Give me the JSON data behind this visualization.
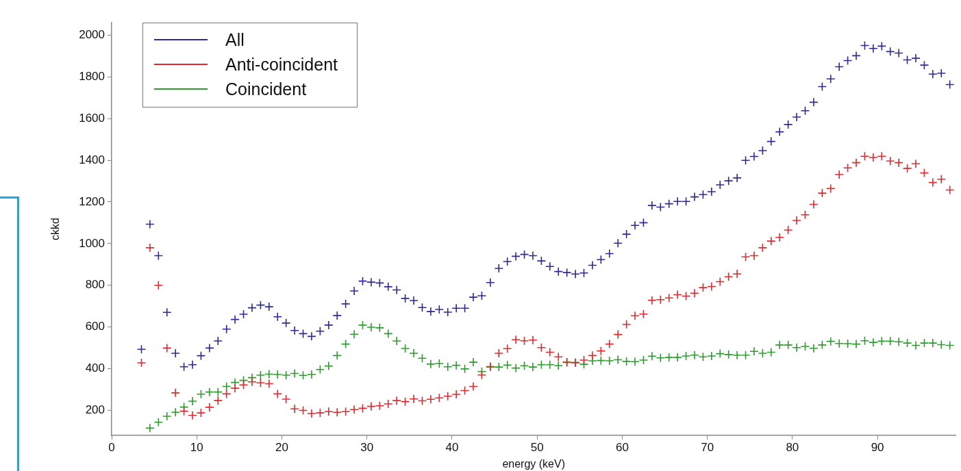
{
  "chart_data": {
    "type": "scatter",
    "xlabel": "energy (keV)",
    "ylabel": "ckkd",
    "legend": "top left",
    "grid": false,
    "marker": "cross",
    "xlim": [
      0,
      99.2
    ],
    "xticks": [
      0,
      10,
      20,
      30,
      40,
      50,
      60,
      70,
      80,
      90
    ],
    "ylim": [
      80,
      2060
    ],
    "yticks": [
      200,
      400,
      600,
      800,
      1000,
      1200,
      1400,
      1600,
      1800,
      2000
    ],
    "x": [
      3.5,
      4.5,
      5.5,
      6.5,
      7.5,
      8.5,
      9.5,
      10.5,
      11.5,
      12.5,
      13.5,
      14.5,
      15.5,
      16.5,
      17.5,
      18.5,
      19.5,
      20.5,
      21.5,
      22.5,
      23.5,
      24.5,
      25.5,
      26.5,
      27.5,
      28.5,
      29.5,
      30.5,
      31.5,
      32.5,
      33.5,
      34.5,
      35.5,
      36.5,
      37.5,
      38.5,
      39.5,
      40.5,
      41.5,
      42.5,
      43.5,
      44.5,
      45.5,
      46.5,
      47.5,
      48.5,
      49.5,
      50.5,
      51.5,
      52.5,
      53.5,
      54.5,
      55.5,
      56.5,
      57.5,
      58.5,
      59.5,
      60.5,
      61.5,
      62.5,
      63.5,
      64.5,
      65.5,
      66.5,
      67.5,
      68.5,
      69.5,
      70.5,
      71.5,
      72.5,
      73.5,
      74.5,
      75.5,
      76.5,
      77.5,
      78.5,
      79.5,
      80.5,
      81.5,
      82.5,
      83.5,
      84.5,
      85.5,
      86.5,
      87.5,
      88.5,
      89.5,
      90.5,
      91.5,
      92.5,
      93.5,
      94.5,
      95.5,
      96.5,
      97.5,
      98.5
    ],
    "series": [
      {
        "name": "All",
        "color": "#2a2a9a",
        "values": [
          493,
          1093,
          942,
          670,
          474,
          409,
          419,
          462,
          499,
          533,
          590,
          636,
          661,
          692,
          705,
          697,
          649,
          619,
          583,
          568,
          555,
          580,
          609,
          655,
          711,
          773,
          820,
          815,
          811,
          793,
          778,
          737,
          727,
          693,
          674,
          684,
          671,
          690,
          690,
          743,
          750,
          813,
          881,
          914,
          939,
          948,
          942,
          917,
          890,
          866,
          861,
          854,
          859,
          896,
          923,
          952,
          1002,
          1045,
          1087,
          1100,
          1183,
          1175,
          1191,
          1202,
          1202,
          1224,
          1235,
          1249,
          1282,
          1301,
          1315,
          1399,
          1418,
          1446,
          1490,
          1536,
          1571,
          1607,
          1637,
          1678,
          1753,
          1790,
          1848,
          1878,
          1901,
          1950,
          1936,
          1947,
          1921,
          1914,
          1881,
          1889,
          1856,
          1813,
          1817,
          1763
        ]
      },
      {
        "name": "Anti-coincident",
        "color": "#e5282d",
        "values": [
          428,
          980,
          800,
          499,
          284,
          196,
          176,
          188,
          215,
          247,
          279,
          306,
          322,
          337,
          332,
          328,
          279,
          254,
          207,
          200,
          185,
          188,
          194,
          191,
          194,
          204,
          210,
          219,
          222,
          231,
          247,
          242,
          255,
          246,
          253,
          260,
          268,
          277,
          295,
          315,
          370,
          410,
          474,
          496,
          539,
          534,
          537,
          501,
          479,
          457,
          430,
          428,
          441,
          463,
          485,
          518,
          564,
          613,
          654,
          662,
          728,
          731,
          739,
          755,
          748,
          762,
          789,
          794,
          817,
          841,
          855,
          936,
          942,
          980,
          1012,
          1030,
          1065,
          1111,
          1138,
          1188,
          1242,
          1264,
          1331,
          1363,
          1388,
          1419,
          1413,
          1419,
          1396,
          1388,
          1361,
          1383,
          1339,
          1293,
          1309,
          1257
        ]
      },
      {
        "name": "Coincident",
        "color": "#2a9e2a",
        "values": [
          null,
          115,
          143,
          172,
          191,
          216,
          244,
          278,
          288,
          288,
          315,
          334,
          344,
          357,
          369,
          374,
          372,
          369,
          377,
          368,
          372,
          396,
          413,
          463,
          518,
          565,
          609,
          599,
          596,
          568,
          533,
          497,
          474,
          450,
          422,
          425,
          409,
          416,
          399,
          431,
          386,
          408,
          408,
          417,
          403,
          414,
          408,
          419,
          419,
          415,
          432,
          430,
          421,
          438,
          439,
          438,
          443,
          435,
          434,
          441,
          460,
          452,
          454,
          454,
          461,
          465,
          457,
          461,
          472,
          468,
          465,
          465,
          483,
          474,
          479,
          514,
          514,
          501,
          507,
          498,
          514,
          531,
          521,
          520,
          518,
          534,
          526,
          532,
          532,
          529,
          523,
          512,
          523,
          523,
          515,
          512
        ]
      }
    ]
  }
}
